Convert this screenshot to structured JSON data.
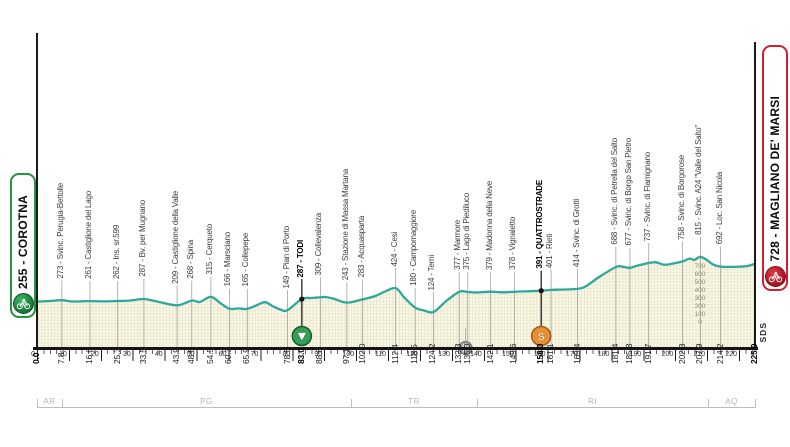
{
  "start_capsule": {
    "label": "255 - COROTNA",
    "accent": "#27913F"
  },
  "finish_capsule": {
    "label": "728 - MAGLIANO DE' MARSI",
    "accent": "#CE2030"
  },
  "branding": {
    "sds_label": "SDS"
  },
  "chart_data": {
    "type": "line",
    "x_unit": "km",
    "y_unit": "m",
    "xlim": [
      0,
      225
    ],
    "ylim": [
      0,
      900
    ],
    "grid": "fine-mesh inside elevation area",
    "line_color": "#2FA79B",
    "area_color": "#FAF8E8",
    "elevation_scale_labels": [
      700,
      600,
      500,
      400,
      300,
      200,
      100,
      0
    ],
    "ruler_major_ticks": [
      0,
      10,
      20,
      30,
      40,
      50,
      60,
      70,
      80,
      90,
      100,
      110,
      120,
      130,
      140,
      150,
      160,
      170,
      180,
      190,
      200,
      210,
      220
    ],
    "ruler_minor_step_km": 2,
    "start": {
      "km": 0,
      "elevation": 255,
      "name": "COROTNA"
    },
    "finish": {
      "km": 225,
      "elevation": 728,
      "name": "MAGLIANO DE' MARSI"
    },
    "waypoints": [
      {
        "km": 7.8,
        "elevation": 273,
        "name": "Svinc. Perugia-Bettolle"
      },
      {
        "km": 16.6,
        "elevation": 261,
        "name": "Castiglione del Lago"
      },
      {
        "km": 25.3,
        "elevation": 262,
        "name": "Ins. sr.599"
      },
      {
        "km": 33.5,
        "elevation": 287,
        "name": "Bv. per Mugnano"
      },
      {
        "km": 43.9,
        "elevation": 209,
        "name": "Castiglione della Valle"
      },
      {
        "km": 48.5,
        "elevation": 268,
        "name": "Spina"
      },
      {
        "km": 54.5,
        "elevation": 315,
        "name": "Cerqueto"
      },
      {
        "km": 60.3,
        "elevation": 166,
        "name": "Marsciano"
      },
      {
        "km": 65.9,
        "elevation": 165,
        "name": "Collepepe"
      },
      {
        "km": 78.5,
        "elevation": 149,
        "name": "Pian di Porto"
      },
      {
        "km": 83.0,
        "elevation": 287,
        "name": "TODI",
        "bold": true,
        "marker": "tv-sprint"
      },
      {
        "km": 88.8,
        "elevation": 309,
        "name": "Collevalenza"
      },
      {
        "km": 97.1,
        "elevation": 243,
        "name": "Stazione di Massa Martana"
      },
      {
        "km": 102.0,
        "elevation": 283,
        "name": "Acquasparta"
      },
      {
        "km": 112.4,
        "elevation": 424,
        "name": "Cesi"
      },
      {
        "km": 118.5,
        "elevation": 180,
        "name": "Campomaggiore"
      },
      {
        "km": 124.2,
        "elevation": 124,
        "name": "Terni"
      },
      {
        "km": 132.3,
        "elevation": 377,
        "name": "Marmore"
      },
      {
        "km": 135.0,
        "elevation": 375,
        "name": "Lago di Piediluco"
      },
      {
        "km": 142.1,
        "elevation": 379,
        "name": "Madonna della Neve"
      },
      {
        "km": 149.6,
        "elevation": 378,
        "name": "Vignaletto"
      },
      {
        "km": 158.0,
        "elevation": 391,
        "name": "QUATTROSTRADE",
        "bold": true,
        "marker": "s-sprint"
      },
      {
        "km": 161.1,
        "elevation": 401,
        "name": "Rieti"
      },
      {
        "km": 169.4,
        "elevation": 414,
        "name": "Svinc. di Grotti"
      },
      {
        "km": 181.4,
        "elevation": 688,
        "name": "Svinc. di Petrella del Salto"
      },
      {
        "km": 185.8,
        "elevation": 677,
        "name": "Svinc. di Borgo San Pietro"
      },
      {
        "km": 191.7,
        "elevation": 737,
        "name": "Svinc. di Flamignano"
      },
      {
        "km": 202.3,
        "elevation": 758,
        "name": "Svinc. di Borgorose"
      },
      {
        "km": 207.9,
        "elevation": 815,
        "name": "Svinc. A24 \"Valle del Salto\""
      },
      {
        "km": 214.2,
        "elevation": 692,
        "name": "Loc. San Nicola"
      }
    ],
    "feed_zone_km": 134.3,
    "km_labels": [
      {
        "text": "0.0",
        "km": 0,
        "bold": true
      },
      {
        "text": "7.8",
        "km": 7.8
      },
      {
        "text": "16.6",
        "km": 16.6
      },
      {
        "text": "25.3",
        "km": 25.3
      },
      {
        "text": "33.5",
        "km": 33.5
      },
      {
        "text": "43.9",
        "km": 43.9
      },
      {
        "text": "48.5",
        "km": 48.5
      },
      {
        "text": "54.5",
        "km": 54.5
      },
      {
        "text": "60.3",
        "km": 60.3
      },
      {
        "text": "65.9",
        "km": 65.9
      },
      {
        "text": "78.5",
        "km": 78.5
      },
      {
        "text": "83.0",
        "km": 83,
        "bold": true
      },
      {
        "text": "88.8",
        "km": 88.8
      },
      {
        "text": "97.1",
        "km": 97.1
      },
      {
        "text": "102.0",
        "km": 102
      },
      {
        "text": "112.4",
        "km": 112.4
      },
      {
        "text": "118.5",
        "km": 118.5
      },
      {
        "text": "124.2",
        "km": 124.2
      },
      {
        "text": "132.3",
        "km": 132.3
      },
      {
        "text": "135.0",
        "km": 135
      },
      {
        "text": "142.1",
        "km": 142.1
      },
      {
        "text": "149.6",
        "km": 149.6
      },
      {
        "text": "158.0",
        "km": 158,
        "bold": true
      },
      {
        "text": "161.1",
        "km": 161.1
      },
      {
        "text": "169.4",
        "km": 169.4
      },
      {
        "text": "181.4",
        "km": 181.4
      },
      {
        "text": "185.8",
        "km": 185.8
      },
      {
        "text": "191.7",
        "km": 191.7
      },
      {
        "text": "202.3",
        "km": 202.3
      },
      {
        "text": "207.9",
        "km": 207.9
      },
      {
        "text": "214.2",
        "km": 214.2
      },
      {
        "text": "225.0",
        "km": 225,
        "bold": true
      }
    ],
    "regions": [
      {
        "code": "AR",
        "from_km": 0,
        "to_km": 7.8
      },
      {
        "code": "PG",
        "from_km": 7.8,
        "to_km": 98.4
      },
      {
        "code": "TR",
        "from_km": 98.4,
        "to_km": 137.9
      },
      {
        "code": "RI",
        "from_km": 137.9,
        "to_km": 210.3
      },
      {
        "code": "AQ",
        "from_km": 210.3,
        "to_km": 225
      }
    ],
    "profile": [
      [
        0,
        255
      ],
      [
        4,
        262
      ],
      [
        7.8,
        273
      ],
      [
        11,
        256
      ],
      [
        16.6,
        261
      ],
      [
        21,
        257
      ],
      [
        25.3,
        262
      ],
      [
        29,
        267
      ],
      [
        33.5,
        287
      ],
      [
        38,
        252
      ],
      [
        43.9,
        209
      ],
      [
        48.5,
        268
      ],
      [
        51,
        250
      ],
      [
        54.5,
        315
      ],
      [
        57.5,
        235
      ],
      [
        60.3,
        166
      ],
      [
        63,
        170
      ],
      [
        65.9,
        165
      ],
      [
        69,
        212
      ],
      [
        71.5,
        248
      ],
      [
        74,
        195
      ],
      [
        76.5,
        152
      ],
      [
        78.5,
        149
      ],
      [
        83,
        287
      ],
      [
        86,
        300
      ],
      [
        88.8,
        309
      ],
      [
        90.5,
        312
      ],
      [
        93,
        290
      ],
      [
        97.1,
        243
      ],
      [
        102,
        283
      ],
      [
        106,
        325
      ],
      [
        109,
        380
      ],
      [
        112.4,
        424
      ],
      [
        115,
        310
      ],
      [
        118.5,
        180
      ],
      [
        121,
        148
      ],
      [
        124.2,
        124
      ],
      [
        128,
        255
      ],
      [
        132.3,
        377
      ],
      [
        135,
        375
      ],
      [
        138,
        369
      ],
      [
        142.1,
        379
      ],
      [
        146,
        371
      ],
      [
        149.6,
        378
      ],
      [
        153,
        383
      ],
      [
        158,
        391
      ],
      [
        161.1,
        401
      ],
      [
        165,
        406
      ],
      [
        169.4,
        414
      ],
      [
        172,
        448
      ],
      [
        176,
        558
      ],
      [
        181.4,
        688
      ],
      [
        183.5,
        691
      ],
      [
        185.8,
        677
      ],
      [
        188,
        702
      ],
      [
        191.7,
        737
      ],
      [
        194,
        746
      ],
      [
        196.5,
        716
      ],
      [
        199,
        728
      ],
      [
        202.3,
        758
      ],
      [
        204.5,
        792
      ],
      [
        206,
        776
      ],
      [
        207.9,
        815
      ],
      [
        210,
        772
      ],
      [
        212,
        716
      ],
      [
        214.2,
        692
      ],
      [
        217,
        689
      ],
      [
        220,
        692
      ],
      [
        222.5,
        699
      ],
      [
        225,
        728
      ]
    ]
  }
}
